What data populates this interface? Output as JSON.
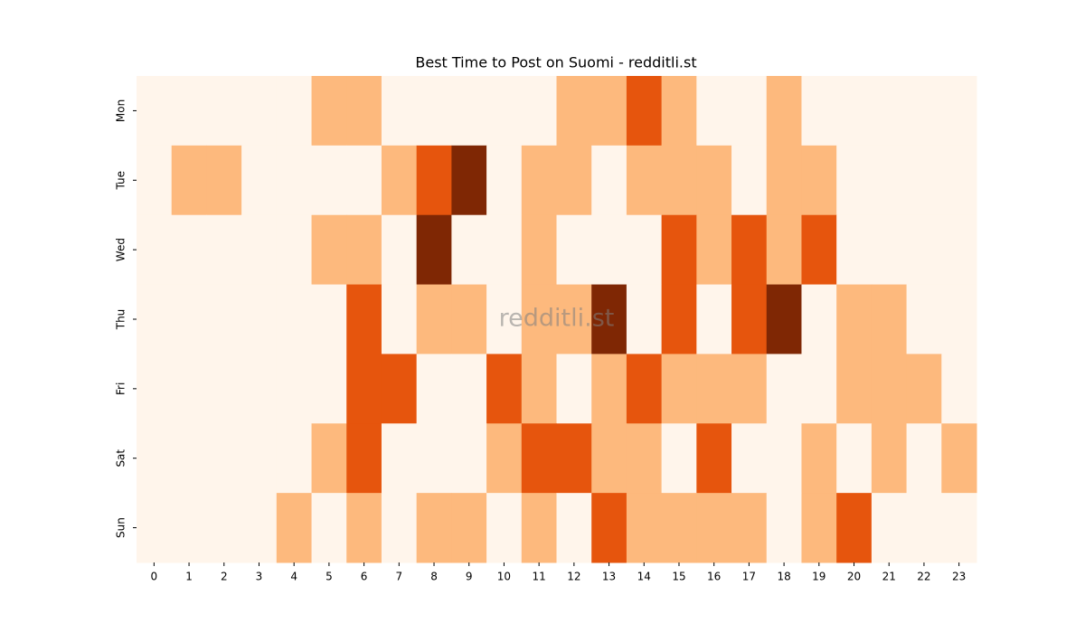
{
  "chart_data": {
    "type": "heatmap",
    "title": "Best Time to Post on Suomi - redditli.st",
    "watermark": "redditli.st",
    "x": [
      0,
      1,
      2,
      3,
      4,
      5,
      6,
      7,
      8,
      9,
      10,
      11,
      12,
      13,
      14,
      15,
      16,
      17,
      18,
      19,
      20,
      21,
      22,
      23
    ],
    "categories": [
      "Mon",
      "Tue",
      "Wed",
      "Thu",
      "Fri",
      "Sat",
      "Sun"
    ],
    "values": [
      [
        0,
        0,
        0,
        0,
        0,
        1,
        1,
        0,
        0,
        0,
        0,
        0,
        1,
        1,
        2,
        1,
        0,
        0,
        1,
        0,
        0,
        0,
        0,
        0
      ],
      [
        0,
        1,
        1,
        0,
        0,
        0,
        0,
        1,
        2,
        3,
        0,
        1,
        1,
        0,
        1,
        1,
        1,
        0,
        1,
        1,
        0,
        0,
        0,
        0
      ],
      [
        0,
        0,
        0,
        0,
        0,
        1,
        1,
        0,
        3,
        0,
        0,
        1,
        0,
        0,
        0,
        2,
        1,
        2,
        1,
        2,
        0,
        0,
        0,
        0
      ],
      [
        0,
        0,
        0,
        0,
        0,
        0,
        2,
        0,
        1,
        1,
        0,
        1,
        1,
        3,
        0,
        2,
        0,
        2,
        3,
        0,
        1,
        1,
        0,
        0
      ],
      [
        0,
        0,
        0,
        0,
        0,
        0,
        2,
        2,
        0,
        0,
        2,
        1,
        0,
        1,
        2,
        1,
        1,
        1,
        0,
        0,
        1,
        1,
        1,
        0
      ],
      [
        0,
        0,
        0,
        0,
        0,
        1,
        2,
        0,
        0,
        0,
        1,
        2,
        2,
        1,
        1,
        0,
        2,
        0,
        0,
        1,
        0,
        1,
        0,
        1
      ],
      [
        0,
        0,
        0,
        0,
        1,
        0,
        1,
        0,
        1,
        1,
        0,
        1,
        0,
        2,
        1,
        1,
        1,
        1,
        0,
        1,
        2,
        0,
        0,
        0
      ]
    ],
    "zlim": [
      0,
      3
    ],
    "colors": [
      "#fff5eb",
      "#fdb97d",
      "#e6550d",
      "#7f2704"
    ]
  }
}
